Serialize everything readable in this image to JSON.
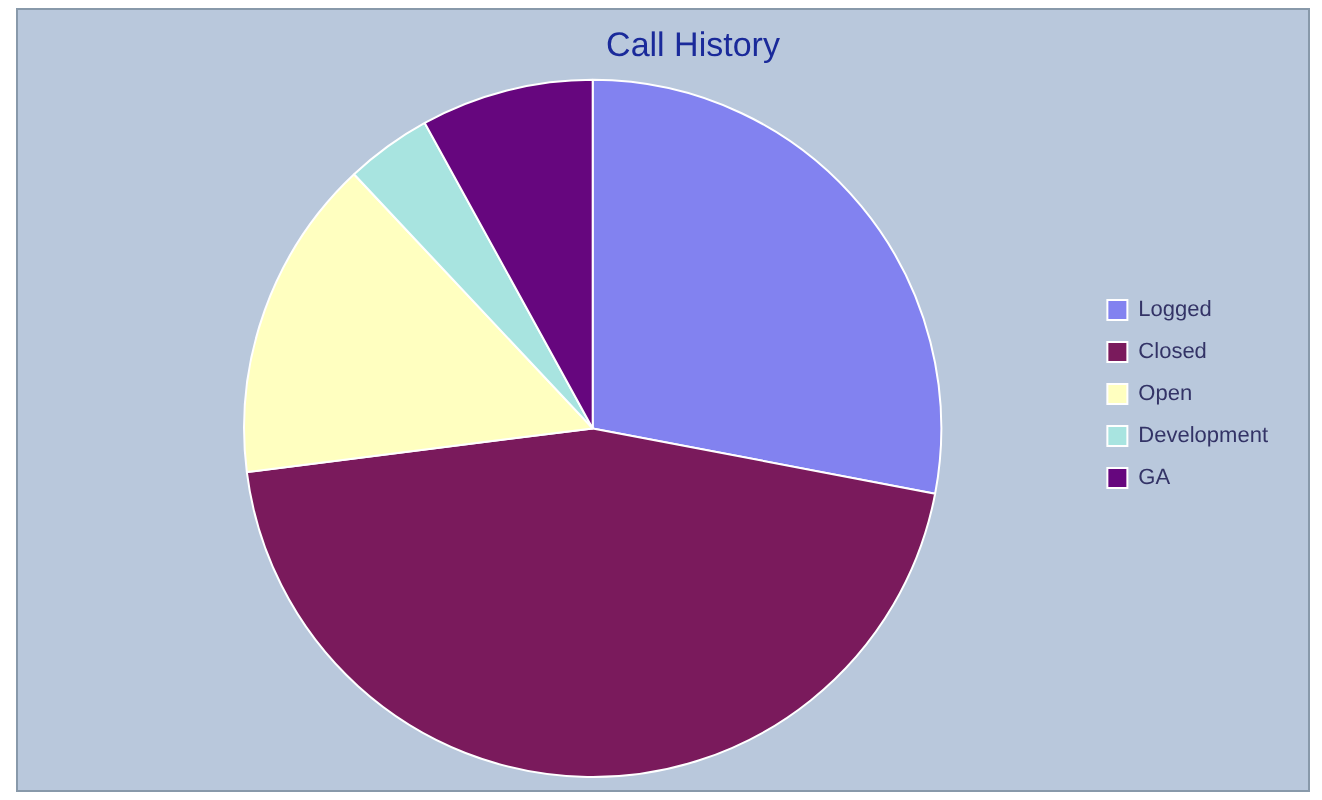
{
  "chart_data": {
    "type": "pie",
    "title": "Call History",
    "categories": [
      "Logged",
      "Closed",
      "Open",
      "Development",
      "GA"
    ],
    "values": [
      28,
      45,
      15,
      4,
      8
    ],
    "colors": [
      "#8282f0",
      "#7a1a5c",
      "#ffffc0",
      "#a8e4e0",
      "#66067e"
    ],
    "legend": "right"
  }
}
